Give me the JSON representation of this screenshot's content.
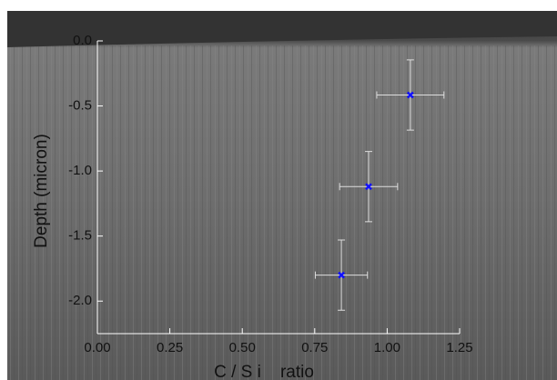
{
  "chart_data": {
    "type": "scatter",
    "xlabel": "C / S i    ratio",
    "ylabel": "Depth (micron)",
    "xlim": [
      0,
      1.25
    ],
    "ylim": [
      -2.25,
      0
    ],
    "xticks": [
      {
        "value": 0,
        "label": "0.00"
      },
      0.25,
      {
        "value": 0.5,
        "label": "0.50"
      },
      0.75,
      {
        "value": 1,
        "label": "1.00"
      },
      1.25
    ],
    "yticks": [
      {
        "value": 0,
        "label": "0.0"
      },
      -0.5,
      {
        "value": -1,
        "label": "-1.0"
      },
      -1.5,
      {
        "value": -2,
        "label": "-2.0"
      }
    ],
    "series": [
      {
        "color": "#1010ff",
        "x": [
          1.08,
          0.936,
          0.842
        ],
        "y": [
          -0.416,
          -1.12,
          -1.8
        ],
        "xerr": [
          0.116,
          0.1,
          0.09
        ],
        "yerr": [
          0.27,
          0.27,
          0.27
        ]
      }
    ]
  }
}
